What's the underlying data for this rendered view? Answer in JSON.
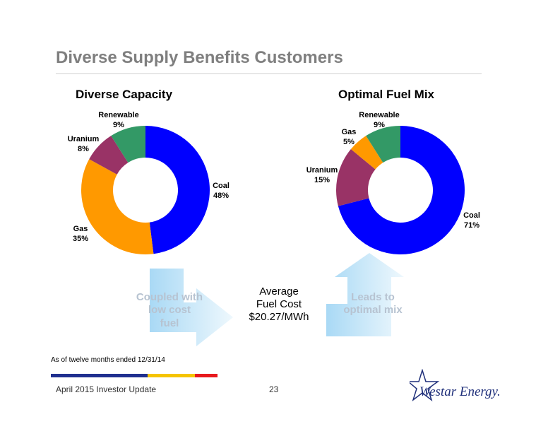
{
  "title": "Diverse Supply Benefits Customers",
  "colors": {
    "coal": "#0000ff",
    "gas": "#ff9900",
    "uranium": "#993366",
    "renewable": "#339966"
  },
  "chart_data": [
    {
      "type": "pie",
      "title": "Diverse Capacity",
      "labels": [
        "Coal",
        "Gas",
        "Uranium",
        "Renewable"
      ],
      "values": [
        48,
        35,
        8,
        9
      ],
      "value_labels": [
        "48%",
        "35%",
        "8%",
        "9%"
      ]
    },
    {
      "type": "pie",
      "title": "Optimal Fuel Mix",
      "labels": [
        "Coal",
        "Uranium",
        "Gas",
        "Renewable"
      ],
      "values": [
        71,
        15,
        5,
        9
      ],
      "value_labels": [
        "71%",
        "15%",
        "5%",
        "9%"
      ]
    }
  ],
  "left_arrow_text": [
    "Coupled with",
    "low cost",
    "fuel"
  ],
  "right_arrow_text": [
    "Leads to",
    "optimal mix"
  ],
  "center": {
    "line1": "Average",
    "line2": "Fuel Cost",
    "line3": "$20.27/MWh"
  },
  "footnote": "As of twelve months ended 12/31/14",
  "footer": {
    "left": "April 2015 Investor Update",
    "page": "23",
    "logo": "Westar Energy."
  },
  "bar_colors": [
    "#1f2f8f",
    "#f5c400",
    "#e8191d"
  ]
}
